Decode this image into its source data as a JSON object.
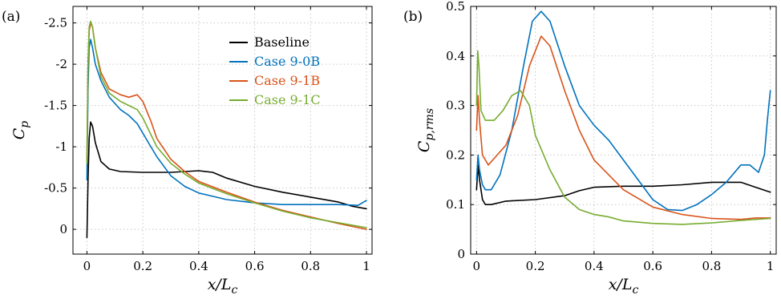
{
  "chart_data": [
    {
      "type": "line",
      "panel_label": "(a)",
      "xlabel": "x/L_c",
      "ylabel": "C_p",
      "xlim": [
        -0.05,
        1.02
      ],
      "ylim": [
        -2.7,
        0.3
      ],
      "y_reversed": true,
      "grid": true,
      "legend_position": "top-right",
      "xticks": [
        0,
        0.2,
        0.4,
        0.6,
        0.8,
        1
      ],
      "xtick_labels": [
        "0",
        "0.2",
        "0.4",
        "0.6",
        "0.8",
        "1"
      ],
      "yticks": [
        -2.5,
        -2,
        -1.5,
        -1,
        -0.5,
        0
      ],
      "ytick_labels": [
        "-2.5",
        "-2",
        "-1.5",
        "-1",
        "-0.5",
        "0"
      ],
      "series": [
        {
          "name": "Baseline",
          "color": "#000000",
          "x": [
            0,
            0.004,
            0.008,
            0.013,
            0.02,
            0.03,
            0.05,
            0.08,
            0.12,
            0.2,
            0.3,
            0.4,
            0.45,
            0.5,
            0.6,
            0.7,
            0.8,
            0.9,
            0.95,
            1.0
          ],
          "y": [
            0.1,
            -0.6,
            -1.1,
            -1.3,
            -1.25,
            -1.05,
            -0.82,
            -0.73,
            -0.7,
            -0.69,
            -0.69,
            -0.71,
            -0.69,
            -0.62,
            -0.52,
            -0.45,
            -0.39,
            -0.33,
            -0.28,
            -0.25
          ]
        },
        {
          "name": "Case 9-0B",
          "color": "#0072BD",
          "x": [
            0,
            0.004,
            0.008,
            0.013,
            0.02,
            0.03,
            0.05,
            0.08,
            0.12,
            0.15,
            0.18,
            0.22,
            0.25,
            0.3,
            0.35,
            0.4,
            0.5,
            0.6,
            0.7,
            0.8,
            0.9,
            0.97,
            0.99,
            1.0
          ],
          "y": [
            -0.6,
            -1.7,
            -2.2,
            -2.3,
            -2.2,
            -2.0,
            -1.8,
            -1.6,
            -1.45,
            -1.38,
            -1.28,
            -1.05,
            -0.88,
            -0.65,
            -0.52,
            -0.44,
            -0.36,
            -0.32,
            -0.3,
            -0.3,
            -0.3,
            -0.29,
            -0.33,
            -0.35
          ]
        },
        {
          "name": "Case 9-1B",
          "color": "#D95319",
          "x": [
            0,
            0.004,
            0.008,
            0.013,
            0.02,
            0.03,
            0.05,
            0.08,
            0.12,
            0.15,
            0.18,
            0.2,
            0.23,
            0.25,
            0.3,
            0.35,
            0.4,
            0.5,
            0.6,
            0.7,
            0.8,
            0.9,
            1.0
          ],
          "y": [
            -0.85,
            -2.0,
            -2.4,
            -2.5,
            -2.45,
            -2.2,
            -1.9,
            -1.7,
            -1.63,
            -1.6,
            -1.63,
            -1.55,
            -1.3,
            -1.1,
            -0.85,
            -0.7,
            -0.58,
            -0.45,
            -0.33,
            -0.23,
            -0.15,
            -0.07,
            0.0
          ]
        },
        {
          "name": "Case 9-1C",
          "color": "#77AC30",
          "x": [
            0,
            0.004,
            0.008,
            0.013,
            0.02,
            0.03,
            0.05,
            0.08,
            0.12,
            0.15,
            0.18,
            0.2,
            0.25,
            0.3,
            0.35,
            0.4,
            0.5,
            0.6,
            0.7,
            0.8,
            0.9,
            1.0
          ],
          "y": [
            -0.8,
            -2.0,
            -2.45,
            -2.52,
            -2.45,
            -2.2,
            -1.85,
            -1.65,
            -1.55,
            -1.5,
            -1.45,
            -1.35,
            -1.0,
            -0.8,
            -0.67,
            -0.56,
            -0.43,
            -0.32,
            -0.22,
            -0.14,
            -0.08,
            -0.02
          ]
        }
      ]
    },
    {
      "type": "line",
      "panel_label": "(b)",
      "xlabel": "x/L_c",
      "ylabel": "C_p,rms",
      "xlim": [
        -0.02,
        1.02
      ],
      "ylim": [
        0,
        0.5
      ],
      "grid": true,
      "xticks": [
        0,
        0.2,
        0.4,
        0.6,
        0.8,
        1
      ],
      "xtick_labels": [
        "0",
        "0.2",
        "0.4",
        "0.6",
        "0.8",
        "1"
      ],
      "yticks": [
        0,
        0.1,
        0.2,
        0.3,
        0.4,
        0.5
      ],
      "ytick_labels": [
        "0",
        "0.1",
        "0.2",
        "0.3",
        "0.4",
        "0.5"
      ],
      "series": [
        {
          "name": "Baseline",
          "color": "#000000",
          "x": [
            0,
            0.005,
            0.01,
            0.02,
            0.03,
            0.05,
            0.1,
            0.2,
            0.3,
            0.35,
            0.4,
            0.5,
            0.6,
            0.7,
            0.8,
            0.9,
            0.95,
            1.0
          ],
          "y": [
            0.13,
            0.18,
            0.15,
            0.11,
            0.1,
            0.1,
            0.107,
            0.11,
            0.118,
            0.128,
            0.135,
            0.137,
            0.137,
            0.14,
            0.145,
            0.145,
            0.135,
            0.125
          ]
        },
        {
          "name": "Case 9-0B",
          "color": "#0072BD",
          "x": [
            0,
            0.005,
            0.01,
            0.02,
            0.03,
            0.05,
            0.08,
            0.12,
            0.16,
            0.19,
            0.22,
            0.25,
            0.3,
            0.35,
            0.4,
            0.45,
            0.5,
            0.6,
            0.65,
            0.7,
            0.75,
            0.8,
            0.85,
            0.9,
            0.93,
            0.96,
            0.98,
            0.99,
            1.0
          ],
          "y": [
            0.15,
            0.2,
            0.17,
            0.14,
            0.13,
            0.13,
            0.16,
            0.25,
            0.38,
            0.47,
            0.49,
            0.47,
            0.38,
            0.3,
            0.26,
            0.23,
            0.19,
            0.11,
            0.09,
            0.088,
            0.1,
            0.12,
            0.145,
            0.18,
            0.18,
            0.165,
            0.2,
            0.27,
            0.33
          ]
        },
        {
          "name": "Case 9-1B",
          "color": "#D95319",
          "x": [
            0,
            0.005,
            0.01,
            0.02,
            0.04,
            0.07,
            0.1,
            0.14,
            0.18,
            0.22,
            0.25,
            0.3,
            0.35,
            0.4,
            0.5,
            0.6,
            0.7,
            0.8,
            0.9,
            0.95,
            1.0
          ],
          "y": [
            0.25,
            0.32,
            0.27,
            0.2,
            0.18,
            0.2,
            0.22,
            0.28,
            0.38,
            0.44,
            0.42,
            0.33,
            0.25,
            0.19,
            0.13,
            0.095,
            0.08,
            0.072,
            0.07,
            0.073,
            0.073
          ]
        },
        {
          "name": "Case 9-1C",
          "color": "#77AC30",
          "x": [
            0,
            0.004,
            0.008,
            0.015,
            0.03,
            0.06,
            0.09,
            0.12,
            0.15,
            0.18,
            0.2,
            0.25,
            0.3,
            0.35,
            0.4,
            0.45,
            0.5,
            0.6,
            0.7,
            0.8,
            0.9,
            1.0
          ],
          "y": [
            0.3,
            0.41,
            0.38,
            0.29,
            0.27,
            0.27,
            0.29,
            0.32,
            0.33,
            0.3,
            0.24,
            0.17,
            0.115,
            0.09,
            0.08,
            0.075,
            0.067,
            0.062,
            0.06,
            0.063,
            0.068,
            0.072
          ]
        }
      ]
    }
  ]
}
